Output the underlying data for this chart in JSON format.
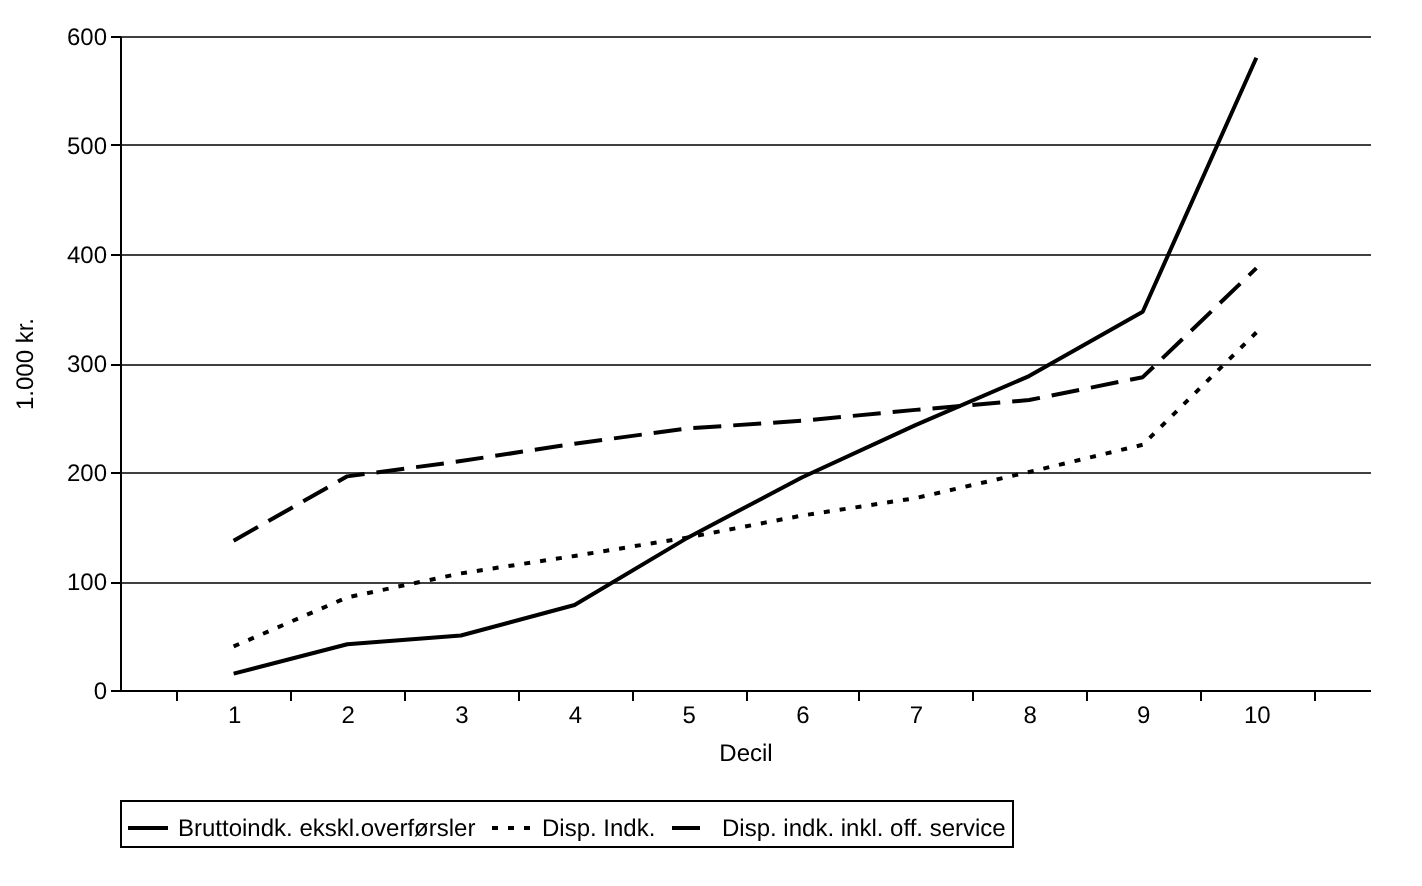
{
  "chart_data": {
    "type": "line",
    "xlabel": "Decil",
    "ylabel": "1.000 kr.",
    "categories": [
      "1",
      "2",
      "3",
      "4",
      "5",
      "6",
      "7",
      "8",
      "9",
      "10"
    ],
    "series": [
      {
        "name": "Bruttoindk. ekskl.overførsler",
        "color": "#000000",
        "line_style": "solid",
        "values": [
          15,
          42,
          50,
          78,
          140,
          195,
          243,
          288,
          347,
          580
        ]
      },
      {
        "name": "Disp. Indk.",
        "color": "#000000",
        "line_style": "dotted",
        "values": [
          40,
          85,
          107,
          123,
          140,
          160,
          176,
          200,
          225,
          328
        ]
      },
      {
        "name": "Disp. indk. inkl. off. service",
        "color": "#000000",
        "line_style": "dashed",
        "values": [
          137,
          196,
          210,
          226,
          240,
          247,
          257,
          266,
          287,
          387
        ]
      }
    ],
    "ylim": [
      0,
      600
    ],
    "yticks": [
      0,
      100,
      200,
      300,
      400,
      500,
      600
    ],
    "grid": "y",
    "legend": "bottom",
    "marker": "none"
  }
}
